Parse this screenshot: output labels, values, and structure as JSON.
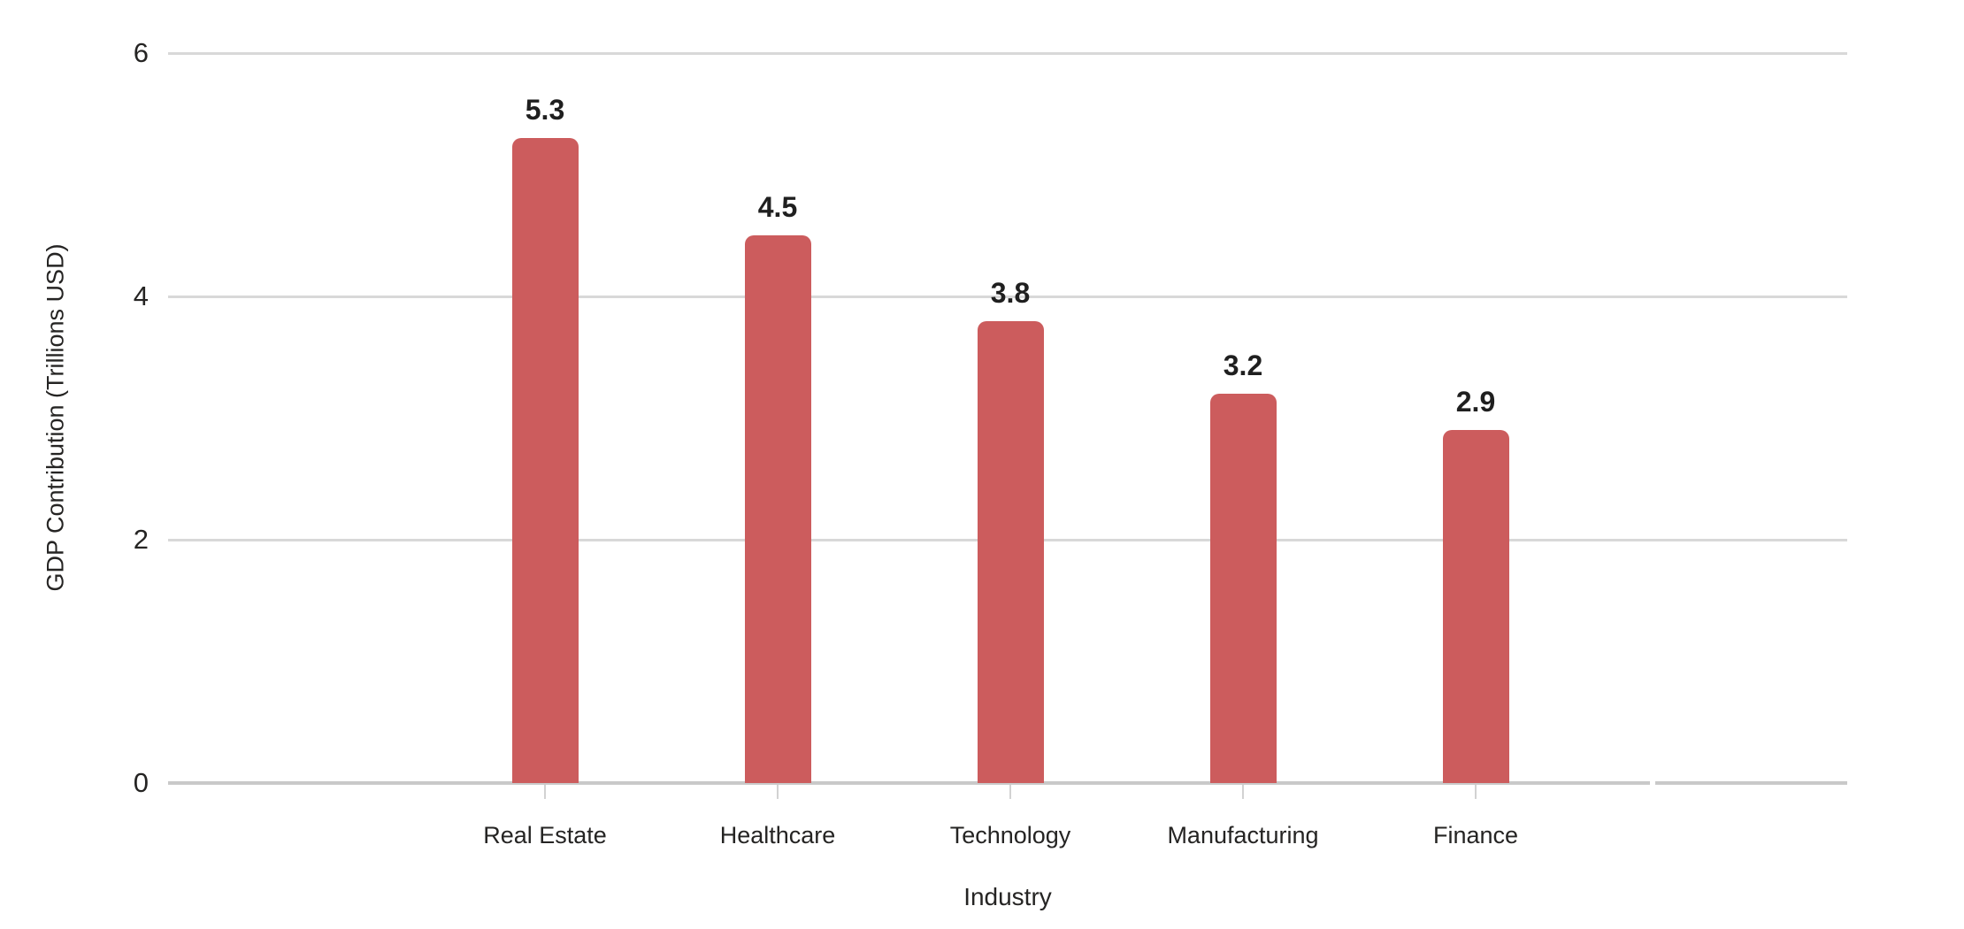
{
  "chart_data": {
    "type": "bar",
    "categories": [
      "Real Estate",
      "Healthcare",
      "Technology",
      "Manufacturing",
      "Finance"
    ],
    "values": [
      5.3,
      4.5,
      3.8,
      3.2,
      2.9
    ],
    "value_labels": [
      "5.3",
      "4.5",
      "3.8",
      "3.2",
      "2.9"
    ],
    "title": "",
    "xlabel": "Industry",
    "ylabel": "GDP Contribution (Trillions USD)",
    "ylim": [
      0,
      6
    ],
    "yticks": [
      0,
      2,
      4,
      6
    ],
    "grid": true,
    "legend": false,
    "bar_corner_radius": "rounded-top"
  },
  "style": {
    "background": "#ffffff",
    "bar_color": "#cc5c5d",
    "grid_color": "#d8d8d8",
    "axis_line_color": "#c9c9c9",
    "tick_color": "#d2d2d2",
    "text_color": "#252423",
    "value_label_color": "#1f1f1f"
  }
}
